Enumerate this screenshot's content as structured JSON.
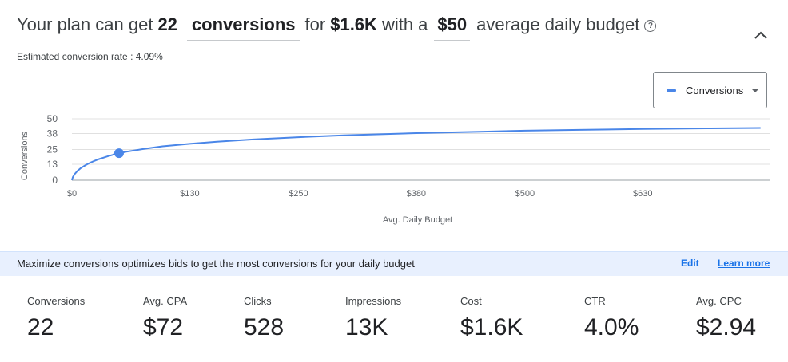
{
  "headline": {
    "prefix": "Your plan can get",
    "conversions_count": "22",
    "metric": "conversions",
    "for_text": "for",
    "cost": "$1.6K",
    "with_text": "with a",
    "budget": "$50",
    "suffix": "average daily budget"
  },
  "estimated_rate": "Estimated conversion rate : 4.09%",
  "metric_dropdown": {
    "label": "Conversions",
    "color": "#4a86e8"
  },
  "chart_data": {
    "type": "line",
    "title": "",
    "xlabel": "Avg. Daily Budget",
    "ylabel": "Conversions",
    "xlim": [
      0,
      770
    ],
    "ylim": [
      0,
      50
    ],
    "x_ticks": [
      0,
      130,
      250,
      380,
      500,
      630
    ],
    "x_tick_labels": [
      "$0",
      "$130",
      "$250",
      "$380",
      "$500",
      "$630"
    ],
    "y_ticks": [
      0,
      13,
      25,
      38,
      50
    ],
    "y_tick_labels": [
      "0",
      "13",
      "25",
      "38",
      "50"
    ],
    "grid": true,
    "legend": "none",
    "series": [
      {
        "name": "Conversions",
        "color": "#4a86e8",
        "x": [
          0,
          1,
          3,
          6,
          10,
          15,
          20,
          25,
          30,
          40,
          50,
          60,
          80,
          100,
          130,
          160,
          200,
          250,
          300,
          380,
          450,
          500,
          560,
          630,
          700,
          760
        ],
        "y": [
          0,
          2.5,
          5,
          7.5,
          10,
          12.3,
          14.2,
          15.8,
          17.2,
          19.6,
          21.6,
          23.2,
          25.6,
          27.6,
          29.6,
          31.3,
          33.2,
          35,
          36.5,
          38.3,
          39.5,
          40.3,
          41,
          41.7,
          42.2,
          42.5
        ]
      }
    ],
    "highlight_point": {
      "x": 52,
      "y": 22
    }
  },
  "info_bar": {
    "message": "Maximize conversions optimizes bids to get the most conversions for your daily budget",
    "edit": "Edit",
    "learn_more": "Learn more"
  },
  "stats": [
    {
      "label": "Conversions",
      "value": "22"
    },
    {
      "label": "Avg. CPA",
      "value": "$72"
    },
    {
      "label": "Clicks",
      "value": "528"
    },
    {
      "label": "Impressions",
      "value": "13K"
    },
    {
      "label": "Cost",
      "value": "$1.6K"
    },
    {
      "label": "CTR",
      "value": "4.0%"
    },
    {
      "label": "Avg. CPC",
      "value": "$2.94"
    }
  ]
}
